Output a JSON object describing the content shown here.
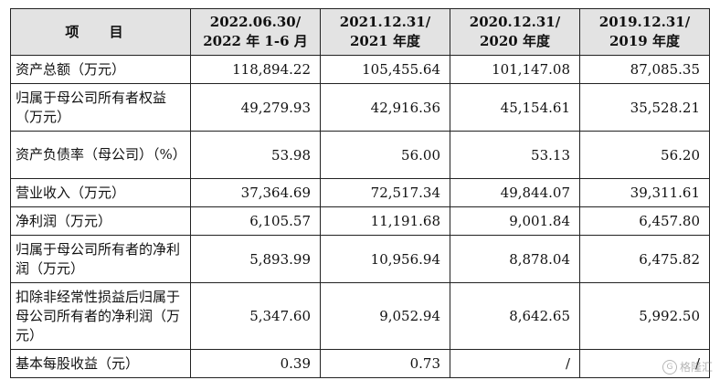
{
  "table": {
    "header": {
      "item": "项 目",
      "cols": [
        {
          "line1": "2022.06.30/",
          "line2": "2022 年 1-6 月"
        },
        {
          "line1": "2021.12.31/",
          "line2": "2021 年度"
        },
        {
          "line1": "2020.12.31/",
          "line2": "2020 年度"
        },
        {
          "line1": "2019.12.31/",
          "line2": "2019 年度"
        }
      ]
    },
    "rows": [
      {
        "label": "资产总额（万元）",
        "values": [
          "118,894.22",
          "105,455.64",
          "101,147.08",
          "87,085.35"
        ]
      },
      {
        "label": "归属于母公司所有者权益（万元）",
        "values": [
          "49,279.93",
          "42,916.36",
          "45,154.61",
          "35,528.21"
        ]
      },
      {
        "label": "资产负债率（母公司）（%）",
        "values": [
          "53.98",
          "56.00",
          "53.13",
          "56.20"
        ]
      },
      {
        "label": "营业收入（万元）",
        "values": [
          "37,364.69",
          "72,517.34",
          "49,844.07",
          "39,311.61"
        ]
      },
      {
        "label": "净利润（万元）",
        "values": [
          "6,105.57",
          "11,191.68",
          "9,001.84",
          "6,457.80"
        ]
      },
      {
        "label": "归属于母公司所有者的净利润（万元）",
        "values": [
          "5,893.99",
          "10,956.94",
          "8,878.04",
          "6,475.82"
        ]
      },
      {
        "label": "扣除非经常性损益后归属于母公司所有者的净利润（万元）",
        "values": [
          "5,347.60",
          "9,052.94",
          "8,642.65",
          "5,992.50"
        ]
      },
      {
        "label": "基本每股收益（元）",
        "values": [
          "0.39",
          "0.73",
          "/",
          "/"
        ]
      }
    ]
  },
  "watermark": {
    "logo": "G",
    "text": "格隆汇"
  }
}
